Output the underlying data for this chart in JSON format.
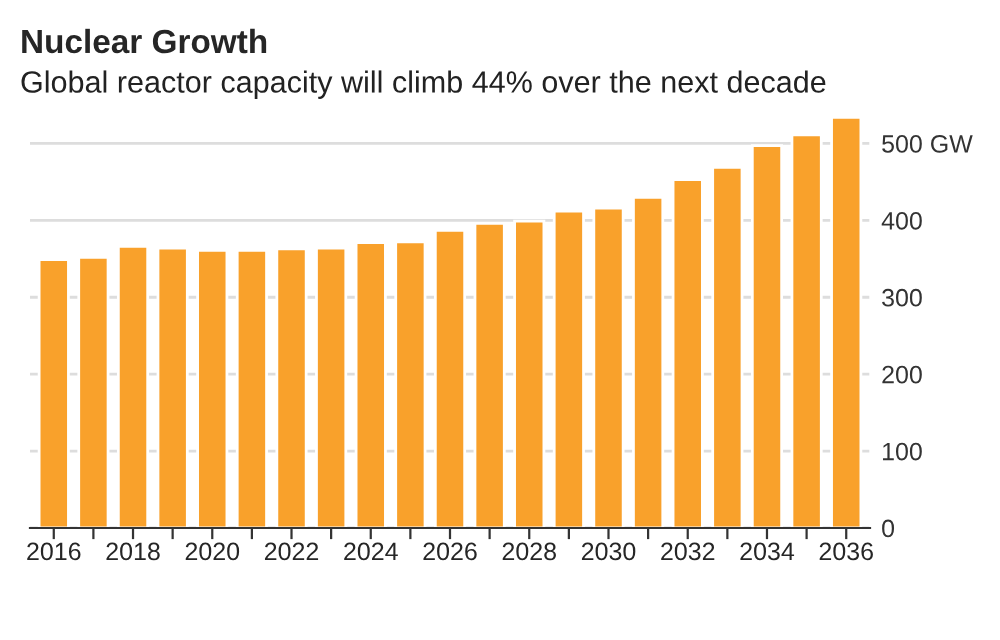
{
  "chart_data": {
    "type": "bar",
    "title": "Nuclear Growth",
    "subtitle": "Global reactor capacity will climb 44% over the next decade",
    "categories": [
      "2016",
      null,
      "2018",
      null,
      "2020",
      null,
      "2022",
      null,
      "2024",
      null,
      "2026",
      null,
      "2028",
      null,
      "2030",
      null,
      "2032",
      null,
      "2034",
      null,
      "2036"
    ],
    "values": [
      349,
      352,
      366,
      364,
      361,
      361,
      363,
      364,
      371,
      372,
      387,
      396,
      399,
      412,
      416,
      430,
      453,
      469,
      497,
      511,
      534
    ],
    "color": "#f9a12b",
    "ylim": [
      0,
      545
    ],
    "yticks": [
      0,
      100,
      200,
      300,
      400,
      {
        "value": 500,
        "label": "500 GW"
      }
    ],
    "grid": "y"
  }
}
